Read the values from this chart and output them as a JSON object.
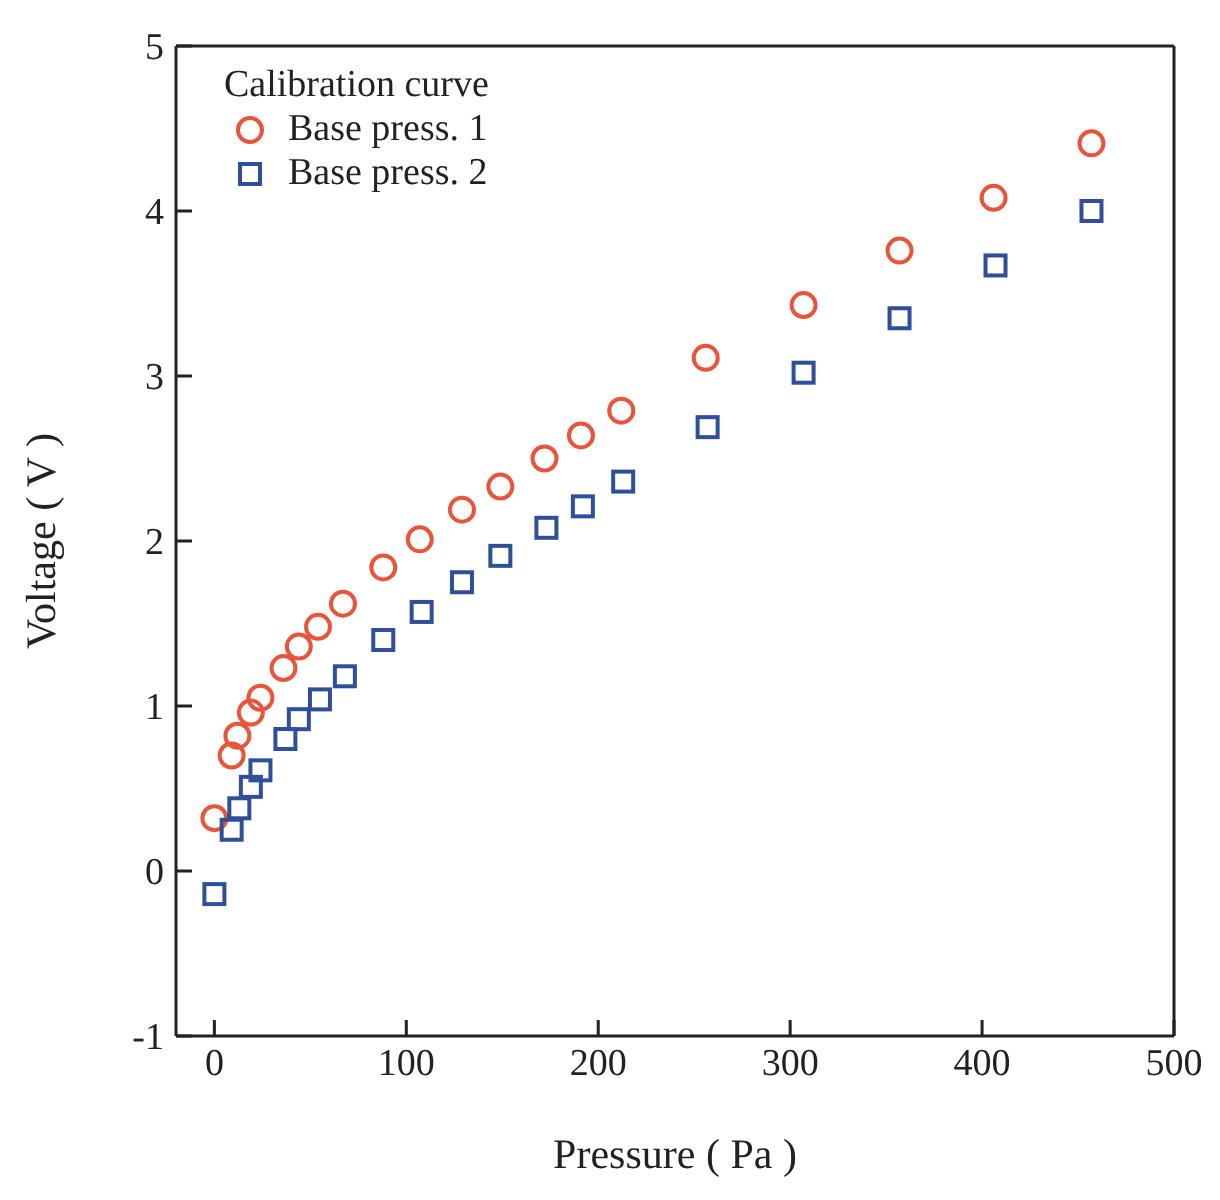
{
  "chart_data": {
    "type": "scatter",
    "xlabel": "Pressure ( Pa )",
    "ylabel": "Voltage ( V )",
    "legend_title": "Calibration curve",
    "xlim": [
      -20,
      500
    ],
    "ylim": [
      -1,
      5
    ],
    "xticks": [
      0,
      100,
      200,
      300,
      400,
      500
    ],
    "yticks": [
      -1,
      0,
      1,
      2,
      3,
      4,
      5
    ],
    "grid": false,
    "legend": "top left",
    "series": [
      {
        "name": "Base press. 1",
        "color": "#e8553a",
        "marker": "circle",
        "x": [
          0,
          9,
          12,
          19,
          24,
          36,
          44,
          54,
          67,
          88,
          107,
          129,
          149,
          172,
          191,
          212,
          256,
          307,
          357,
          406,
          457
        ],
        "values": [
          0.32,
          0.7,
          0.82,
          0.96,
          1.05,
          1.23,
          1.36,
          1.48,
          1.62,
          1.84,
          2.01,
          2.19,
          2.33,
          2.5,
          2.64,
          2.79,
          3.11,
          3.43,
          3.76,
          4.08,
          4.41
        ]
      },
      {
        "name": "Base press. 2",
        "color": "#2f4f9a",
        "marker": "square",
        "x": [
          0,
          9,
          13,
          19,
          24,
          37,
          44,
          55,
          68,
          88,
          108,
          129,
          149,
          173,
          192,
          213,
          257,
          307,
          357,
          407,
          457
        ],
        "values": [
          -0.14,
          0.25,
          0.38,
          0.51,
          0.61,
          0.8,
          0.92,
          1.04,
          1.18,
          1.4,
          1.57,
          1.75,
          1.91,
          2.08,
          2.21,
          2.36,
          2.69,
          3.02,
          3.35,
          3.67,
          4.0
        ]
      }
    ]
  }
}
